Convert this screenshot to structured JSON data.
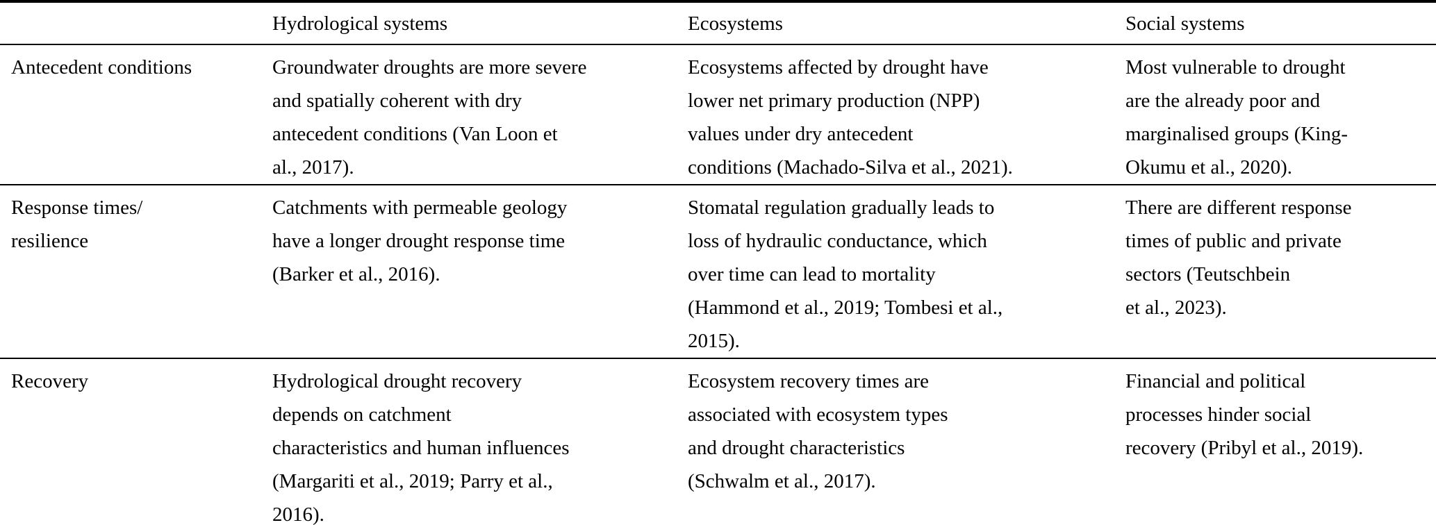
{
  "page": {
    "background_color": "#ffffff",
    "text_color": "#000000"
  },
  "table": {
    "header": {
      "col0": "",
      "col1": "Hydrological systems",
      "col2": "Ecosystems",
      "col3": "Social systems"
    },
    "rows": [
      {
        "label": "Antecedent conditions",
        "hydrological": "Groundwater droughts are more severe\nand spatially coherent with dry\nantecedent conditions (Van Loon et\nal., 2017).",
        "ecosystems": "Ecosystems affected by drought have\nlower net primary production (NPP)\nvalues under dry antecedent\nconditions (Machado-Silva et al., 2021).",
        "social": "Most vulnerable to drought\nare the already poor and\nmarginalised groups (King-\nOkumu et al., 2020)."
      },
      {
        "label": "Response times/\nresilience",
        "hydrological": "Catchments with permeable geology\nhave a longer drought response time\n(Barker et al., 2016).",
        "ecosystems": "Stomatal regulation gradually leads to\nloss of hydraulic conductance, which\nover time can lead to mortality\n(Hammond et al., 2019; Tombesi et al.,\n2015).",
        "social": "There are different response\ntimes of public and private\nsectors (Teutschbein\net al., 2023)."
      },
      {
        "label": "Recovery",
        "hydrological": "Hydrological drought recovery\ndepends on catchment\ncharacteristics and human influences\n(Margariti et al., 2019; Parry et al.,\n2016).",
        "ecosystems": "Ecosystem recovery times are\nassociated with ecosystem types\nand drought characteristics\n(Schwalm et al., 2017).",
        "social": "Financial and political\nprocesses hinder social\nrecovery (Pribyl et al., 2019)."
      }
    ]
  }
}
